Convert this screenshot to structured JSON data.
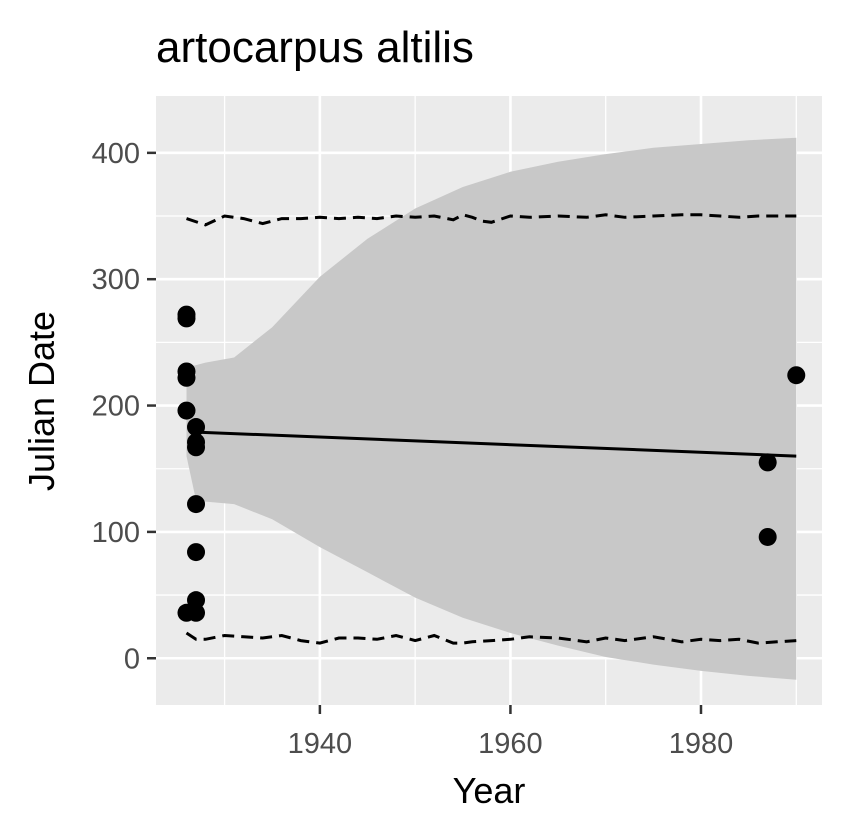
{
  "chart_data": {
    "type": "scatter",
    "title": "artocarpus altilis",
    "xlabel": "Year",
    "ylabel": "Julian Date",
    "xlim": [
      1922.8,
      1992.7
    ],
    "ylim": [
      -37,
      445
    ],
    "x_ticks": [
      "1940",
      "1960",
      "1980"
    ],
    "y_ticks": [
      "0",
      "100",
      "200",
      "300",
      "400"
    ],
    "grid": true,
    "legend": "none",
    "colors": {
      "panel_background": "#ebebeb",
      "grid": "#ffffff",
      "ribbon": "#c8c8c8",
      "points": "#000000",
      "trend_line": "#000000",
      "quantile_lines": "#000000"
    },
    "points": [
      {
        "x": 1926,
        "y": 272
      },
      {
        "x": 1926,
        "y": 269
      },
      {
        "x": 1926,
        "y": 227
      },
      {
        "x": 1926,
        "y": 222
      },
      {
        "x": 1926,
        "y": 196
      },
      {
        "x": 1926,
        "y": 36
      },
      {
        "x": 1927,
        "y": 183
      },
      {
        "x": 1927,
        "y": 171
      },
      {
        "x": 1927,
        "y": 167
      },
      {
        "x": 1927,
        "y": 122
      },
      {
        "x": 1927,
        "y": 84
      },
      {
        "x": 1927,
        "y": 46
      },
      {
        "x": 1927,
        "y": 36
      },
      {
        "x": 1987,
        "y": 155
      },
      {
        "x": 1987,
        "y": 96
      },
      {
        "x": 1990,
        "y": 224
      }
    ],
    "trend_line": {
      "x": [
        1927,
        1990
      ],
      "y": [
        179,
        160
      ]
    },
    "confidence_ribbon": {
      "x": [
        1926,
        1927,
        1928,
        1931,
        1935,
        1940,
        1945,
        1950,
        1955,
        1960,
        1965,
        1970,
        1975,
        1980,
        1985,
        1990
      ],
      "lower": [
        160,
        125,
        124,
        122,
        110,
        88,
        68,
        48,
        32,
        20,
        10,
        1,
        -5,
        -10,
        -14,
        -17
      ],
      "upper": [
        230,
        232,
        234,
        238,
        262,
        302,
        332,
        356,
        373,
        385,
        393,
        399,
        404,
        407,
        410,
        412
      ]
    },
    "upper_quantile": {
      "x": [
        1926,
        1928,
        1930,
        1932,
        1934,
        1936,
        1938,
        1940,
        1942,
        1944,
        1946,
        1948,
        1950,
        1952,
        1954,
        1955,
        1956,
        1957,
        1958,
        1960,
        1962,
        1965,
        1968,
        1970,
        1972,
        1975,
        1978,
        1980,
        1982,
        1984,
        1986,
        1988,
        1990
      ],
      "y": [
        348,
        343,
        350,
        348,
        344,
        348,
        348,
        349,
        348,
        349,
        348,
        350,
        349,
        350,
        347,
        351,
        349,
        346,
        345,
        350,
        349,
        350,
        349,
        351,
        349,
        350,
        351,
        351,
        350,
        349,
        350,
        350,
        350
      ]
    },
    "lower_quantile": {
      "x": [
        1926,
        1927,
        1928,
        1930,
        1932,
        1934,
        1936,
        1938,
        1940,
        1942,
        1944,
        1946,
        1948,
        1950,
        1952,
        1954,
        1955,
        1956,
        1958,
        1960,
        1962,
        1965,
        1968,
        1970,
        1972,
        1975,
        1978,
        1980,
        1982,
        1984,
        1986,
        1988,
        1990
      ],
      "y": [
        20,
        15,
        15,
        18,
        17,
        16,
        18,
        14,
        12,
        16,
        16,
        15,
        18,
        14,
        18,
        12,
        12,
        13,
        14,
        15,
        17,
        16,
        13,
        16,
        14,
        17,
        13,
        15,
        14,
        15,
        12,
        13,
        14
      ]
    }
  }
}
